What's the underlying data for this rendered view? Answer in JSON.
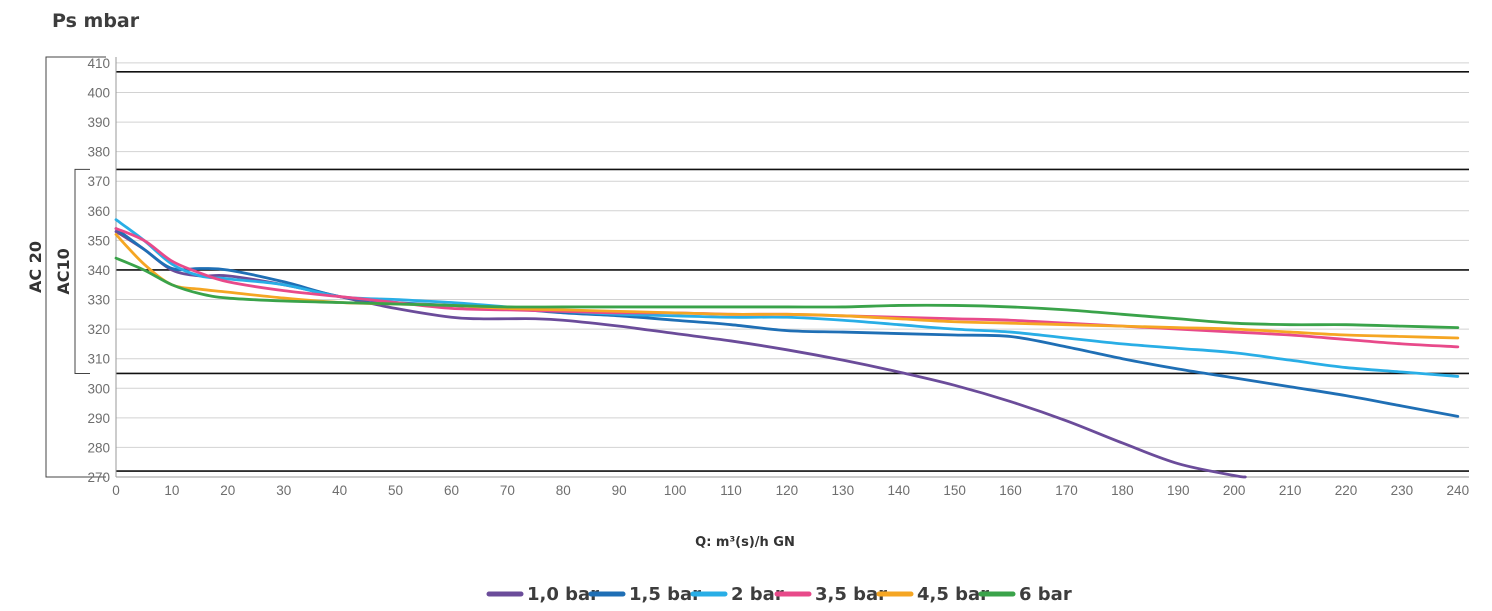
{
  "chart_data": {
    "type": "line",
    "title": "Ps mbar",
    "xlabel": "Q: m³(s)/h GN",
    "ylabel": "",
    "xlim": [
      0,
      242
    ],
    "ylim": [
      270,
      412
    ],
    "xticks": [
      0,
      10,
      20,
      30,
      40,
      50,
      60,
      70,
      80,
      90,
      100,
      110,
      120,
      130,
      140,
      150,
      160,
      170,
      180,
      190,
      200,
      210,
      220,
      230,
      240
    ],
    "yticks": [
      270,
      280,
      290,
      300,
      310,
      320,
      330,
      340,
      350,
      360,
      370,
      380,
      390,
      400,
      410
    ],
    "grid": true,
    "legend_position": "bottom-center",
    "reference_lines": [
      407,
      374,
      340,
      305,
      272
    ],
    "bands": [
      {
        "label": "AC 20",
        "from": 270,
        "to": 412
      },
      {
        "label": "AC10",
        "from": 305,
        "to": 374
      }
    ],
    "series": [
      {
        "name": "1,0 bar",
        "color": "#6b4c9a",
        "x": [
          0,
          5,
          10,
          15,
          20,
          30,
          40,
          50,
          60,
          65,
          70,
          75,
          80,
          90,
          100,
          110,
          120,
          130,
          140,
          150,
          160,
          170,
          180,
          190,
          200,
          202
        ],
        "y": [
          353,
          347,
          340,
          338,
          338,
          335,
          331,
          327,
          324,
          323.5,
          323.5,
          323.5,
          323,
          321,
          318.5,
          316,
          313,
          309.5,
          305.5,
          301,
          295.5,
          289,
          281.5,
          274.5,
          270.5,
          270
        ]
      },
      {
        "name": "1,5 bar",
        "color": "#1f6fb5",
        "x": [
          0,
          5,
          10,
          15,
          20,
          30,
          40,
          50,
          60,
          70,
          80,
          90,
          100,
          110,
          120,
          130,
          140,
          150,
          160,
          170,
          180,
          190,
          200,
          210,
          220,
          230,
          240
        ],
        "y": [
          354,
          347,
          340.5,
          340.5,
          340,
          336,
          331,
          329,
          328,
          327,
          325.5,
          324.5,
          323,
          321.5,
          319.5,
          319,
          318.5,
          318,
          317.5,
          314,
          310,
          306.5,
          303.5,
          300.5,
          297.5,
          294,
          290.5
        ]
      },
      {
        "name": "2 bar",
        "color": "#29aee6",
        "x": [
          0,
          5,
          10,
          15,
          20,
          30,
          40,
          50,
          60,
          70,
          80,
          90,
          100,
          110,
          120,
          130,
          140,
          150,
          160,
          170,
          180,
          190,
          200,
          210,
          220,
          230,
          240
        ],
        "y": [
          357,
          350,
          342,
          338,
          337,
          335,
          331,
          330,
          329,
          327.5,
          326,
          325,
          324.5,
          324,
          324,
          323,
          321.5,
          320,
          319,
          317,
          315,
          313.5,
          312,
          309.5,
          307,
          305.5,
          304
        ]
      },
      {
        "name": "3,5 bar",
        "color": "#e84a8a",
        "x": [
          0,
          5,
          10,
          15,
          20,
          30,
          40,
          50,
          60,
          70,
          80,
          90,
          100,
          110,
          120,
          130,
          140,
          150,
          160,
          170,
          180,
          190,
          200,
          210,
          220,
          230,
          240
        ],
        "y": [
          354,
          350,
          343,
          339,
          336,
          333,
          331,
          329,
          327,
          326.5,
          326,
          325.5,
          325.5,
          325,
          325,
          324.5,
          324,
          323.5,
          323,
          322,
          321,
          320,
          319,
          318,
          316.5,
          315,
          314
        ]
      },
      {
        "name": "4,5 bar",
        "color": "#f5a623",
        "x": [
          0,
          5,
          10,
          15,
          20,
          30,
          40,
          50,
          60,
          70,
          80,
          90,
          100,
          110,
          120,
          130,
          140,
          150,
          160,
          170,
          180,
          190,
          200,
          210,
          220,
          230,
          240
        ],
        "y": [
          352,
          342,
          335,
          333.5,
          332.5,
          330.5,
          329,
          328.5,
          328,
          327,
          326.5,
          326,
          325.5,
          325,
          325,
          324.5,
          323.5,
          322.5,
          322,
          321.5,
          321,
          320.5,
          320,
          319,
          318,
          317.5,
          317
        ]
      },
      {
        "name": "6 bar",
        "color": "#3aa34a",
        "x": [
          0,
          5,
          10,
          15,
          20,
          30,
          40,
          50,
          60,
          70,
          80,
          90,
          100,
          110,
          120,
          130,
          140,
          150,
          160,
          170,
          180,
          190,
          200,
          210,
          220,
          230,
          240
        ],
        "y": [
          344,
          340,
          335,
          332,
          330.5,
          329.5,
          329,
          328.5,
          328,
          327.5,
          327.5,
          327.5,
          327.5,
          327.5,
          327.5,
          327.5,
          328,
          328,
          327.5,
          326.5,
          325,
          323.5,
          322,
          321.5,
          321.5,
          321,
          320.5
        ]
      }
    ]
  }
}
